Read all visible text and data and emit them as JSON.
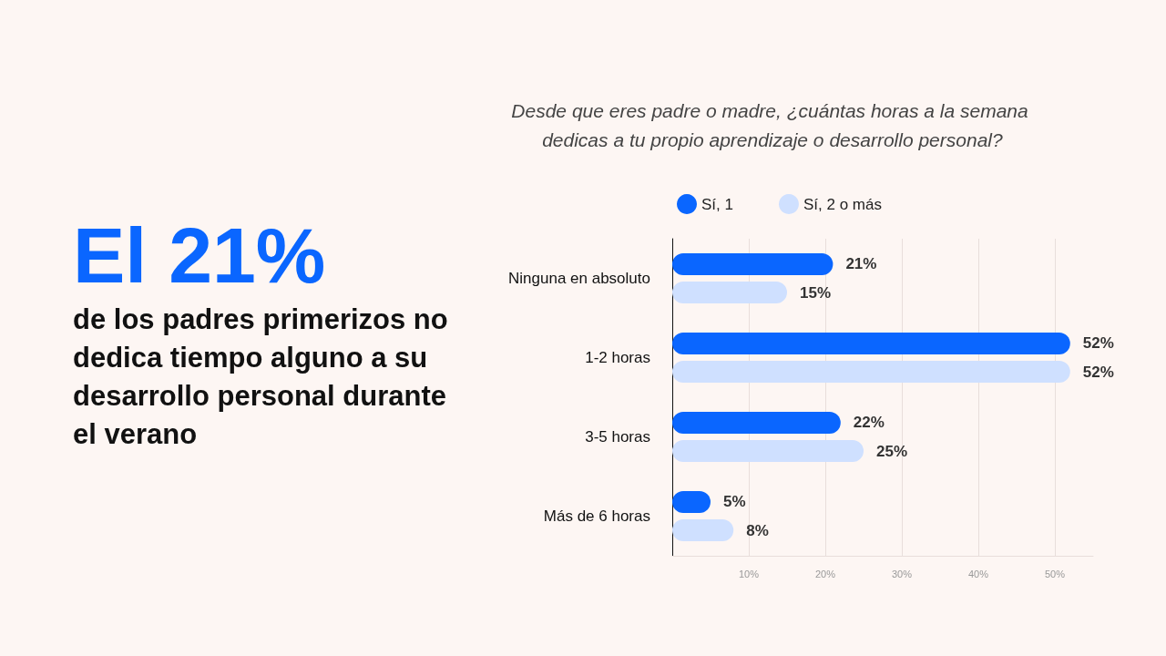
{
  "chart_data": {
    "type": "bar",
    "orientation": "horizontal",
    "title": "Desde que eres padre o madre, ¿cuántas horas a la semana dedicas a tu propio aprendizaje o desarrollo personal?",
    "annotations": [
      "El 21%",
      "de los padres primerizos no dedica tiempo alguno a su desarrollo personal durante el verano"
    ],
    "categories": [
      "Ninguna en absoluto",
      "1-2 horas",
      "3-5 horas",
      "Más de 6 horas"
    ],
    "series": [
      {
        "name": "Sí, 1",
        "color": "#0a66ff",
        "values": [
          21,
          52,
          22,
          5
        ],
        "value_labels": [
          "21%",
          "52%",
          "22%",
          "5%"
        ]
      },
      {
        "name": "Sí, 2 o más",
        "color": "#cfe0ff",
        "values": [
          15,
          52,
          25,
          8
        ],
        "value_labels": [
          "15%",
          "52%",
          "25%",
          "8%"
        ]
      }
    ],
    "xlim": [
      0,
      55
    ],
    "xticks": [
      {
        "value": 10,
        "label": "10%"
      },
      {
        "value": 20,
        "label": "20%"
      },
      {
        "value": 30,
        "label": "30%"
      },
      {
        "value": 40,
        "label": "40%"
      },
      {
        "value": 50,
        "label": "50%"
      }
    ],
    "grid": "x",
    "legend": "top"
  }
}
